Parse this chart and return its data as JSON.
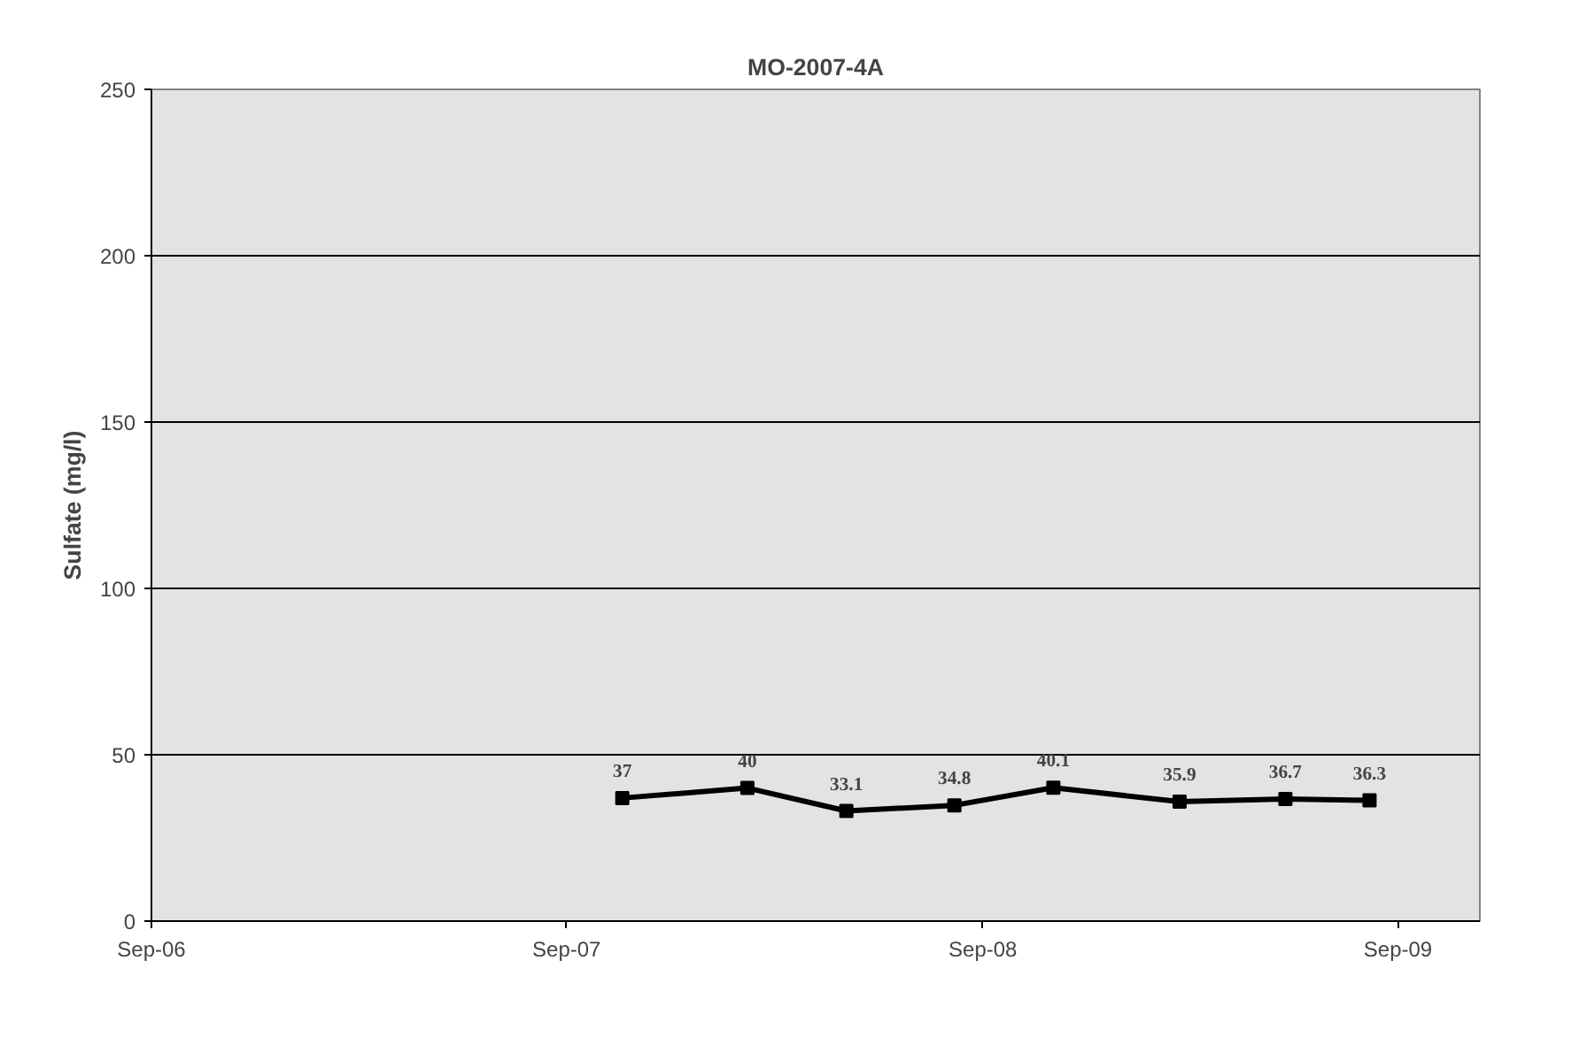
{
  "chart_data": {
    "type": "line",
    "title": "MO-2007-4A",
    "ylabel": "Sulfate (mg/l)",
    "x": [
      "2007-10-20",
      "2008-02-07",
      "2008-05-04",
      "2008-08-07",
      "2008-11-02",
      "2009-02-21",
      "2009-05-25",
      "2009-08-07"
    ],
    "series": [
      {
        "color": "#000000",
        "values": [
          37,
          40,
          33.1,
          34.8,
          40.1,
          35.9,
          36.7,
          36.3
        ]
      }
    ],
    "xlim": [
      "2006-09-01",
      "2009-11-12"
    ],
    "xticks": [
      {
        "value": "2006-09-01",
        "label": "Sep-06"
      },
      {
        "value": "2007-09-01",
        "label": "Sep-07"
      },
      {
        "value": "2008-09-01",
        "label": "Sep-08"
      },
      {
        "value": "2009-09-01",
        "label": "Sep-09"
      }
    ],
    "ylim": [
      0,
      250
    ],
    "yticks": [
      0,
      50,
      100,
      150,
      200,
      250
    ],
    "grid": "y",
    "marker": "square",
    "line_style": "solid",
    "data_labels": true
  }
}
